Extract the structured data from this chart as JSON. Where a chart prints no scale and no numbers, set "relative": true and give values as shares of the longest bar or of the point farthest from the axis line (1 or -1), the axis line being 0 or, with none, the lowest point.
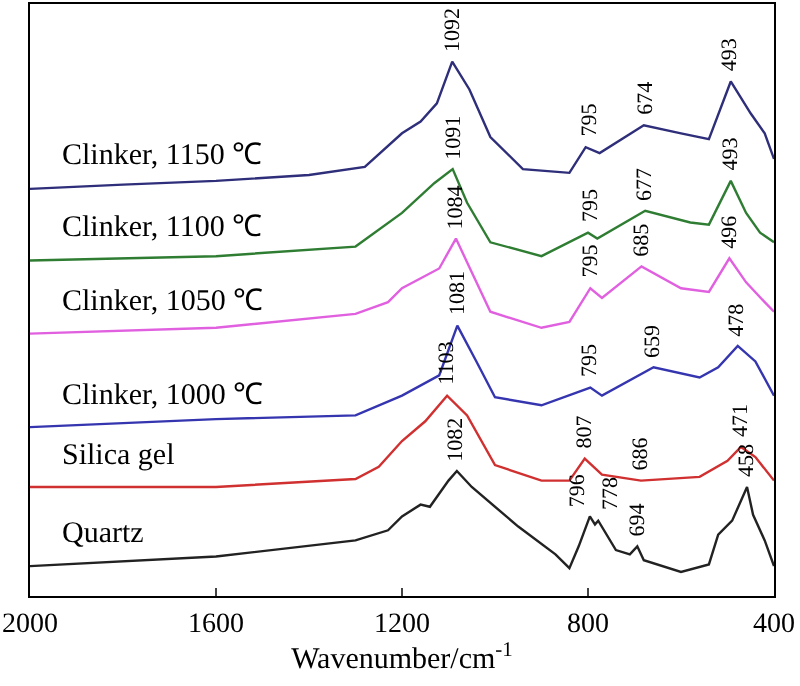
{
  "chart_data": {
    "type": "line",
    "relative": true,
    "xlabel": "Wavenumber/cm$^{-1}$",
    "xlim": [
      2000,
      400
    ],
    "xticks": [
      2000,
      1600,
      1200,
      800,
      400
    ],
    "legend": false,
    "marker": "none",
    "line_style": "solid",
    "series": [
      {
        "name": "Clinker, 1150 ℃",
        "color": "#2e2e7a",
        "x": [
          2000,
          1800,
          1600,
          1400,
          1280,
          1200,
          1160,
          1125,
          1092,
          1055,
          1010,
          940,
          840,
          805,
          775,
          680,
          600,
          540,
          493,
          450,
          420,
          400
        ],
        "values": [
          0.762,
          0.77,
          0.777,
          0.788,
          0.803,
          0.866,
          0.888,
          0.922,
          1.0,
          0.948,
          0.859,
          0.799,
          0.792,
          0.84,
          0.829,
          0.881,
          0.866,
          0.855,
          0.963,
          0.903,
          0.866,
          0.818
        ]
      },
      {
        "name": "Clinker, 1100 ℃",
        "color": "#2e7d32",
        "x": [
          2000,
          1600,
          1300,
          1200,
          1130,
          1091,
          1060,
          1010,
          900,
          800,
          780,
          677,
          580,
          540,
          493,
          460,
          430,
          400
        ],
        "values": [
          0.628,
          0.636,
          0.654,
          0.717,
          0.773,
          0.799,
          0.736,
          0.662,
          0.636,
          0.68,
          0.669,
          0.721,
          0.699,
          0.695,
          0.777,
          0.717,
          0.68,
          0.662
        ]
      },
      {
        "name": "Clinker, 1050 ℃",
        "color": "#e060e0",
        "x": [
          2000,
          1600,
          1300,
          1230,
          1200,
          1120,
          1084,
          1050,
          1010,
          900,
          840,
          795,
          770,
          685,
          600,
          540,
          496,
          460,
          420,
          400
        ],
        "values": [
          0.491,
          0.502,
          0.528,
          0.55,
          0.576,
          0.613,
          0.669,
          0.606,
          0.532,
          0.502,
          0.513,
          0.576,
          0.558,
          0.617,
          0.576,
          0.569,
          0.632,
          0.587,
          0.55,
          0.532
        ]
      },
      {
        "name": "Clinker, 1000 ℃",
        "color": "#3535b0",
        "x": [
          2000,
          1600,
          1300,
          1200,
          1120,
          1081,
          1040,
          1000,
          900,
          795,
          770,
          659,
          560,
          520,
          478,
          440,
          400
        ],
        "values": [
          0.316,
          0.331,
          0.338,
          0.375,
          0.413,
          0.506,
          0.439,
          0.372,
          0.357,
          0.39,
          0.375,
          0.428,
          0.409,
          0.428,
          0.468,
          0.439,
          0.375
        ]
      },
      {
        "name": "Silica gel",
        "color": "#d03030",
        "x": [
          2000,
          1600,
          1300,
          1250,
          1200,
          1150,
          1103,
          1060,
          1000,
          900,
          840,
          807,
          770,
          686,
          560,
          500,
          471,
          440,
          400
        ],
        "values": [
          0.204,
          0.204,
          0.219,
          0.242,
          0.29,
          0.327,
          0.375,
          0.338,
          0.245,
          0.216,
          0.216,
          0.257,
          0.227,
          0.216,
          0.223,
          0.253,
          0.279,
          0.26,
          0.216
        ]
      },
      {
        "name": "Quartz",
        "color": "#222222",
        "x": [
          2000,
          1600,
          1300,
          1230,
          1200,
          1160,
          1140,
          1100,
          1082,
          1050,
          950,
          870,
          840,
          820,
          796,
          785,
          778,
          740,
          710,
          694,
          680,
          600,
          540,
          520,
          490,
          458,
          445,
          420,
          400
        ],
        "values": [
          0.056,
          0.074,
          0.104,
          0.123,
          0.149,
          0.171,
          0.167,
          0.216,
          0.234,
          0.204,
          0.13,
          0.078,
          0.052,
          0.093,
          0.149,
          0.134,
          0.141,
          0.086,
          0.078,
          0.093,
          0.067,
          0.045,
          0.059,
          0.115,
          0.141,
          0.204,
          0.152,
          0.104,
          0.056
        ]
      }
    ],
    "annotations": [
      {
        "text": "1092",
        "x": 1092,
        "y": 1.0
      },
      {
        "text": "795",
        "x": 795,
        "y": 0.84
      },
      {
        "text": "674",
        "x": 674,
        "y": 0.881
      },
      {
        "text": "493",
        "x": 493,
        "y": 0.963
      },
      {
        "text": "1091",
        "x": 1091,
        "y": 0.799
      },
      {
        "text": "795",
        "x": 795,
        "y": 0.68
      },
      {
        "text": "677",
        "x": 677,
        "y": 0.721
      },
      {
        "text": "493",
        "x": 493,
        "y": 0.777
      },
      {
        "text": "1084",
        "x": 1084,
        "y": 0.669
      },
      {
        "text": "795",
        "x": 795,
        "y": 0.576
      },
      {
        "text": "685",
        "x": 685,
        "y": 0.617
      },
      {
        "text": "496",
        "x": 496,
        "y": 0.632
      },
      {
        "text": "1081",
        "x": 1081,
        "y": 0.506
      },
      {
        "text": "795",
        "x": 795,
        "y": 0.39
      },
      {
        "text": "659",
        "x": 659,
        "y": 0.428
      },
      {
        "text": "478",
        "x": 478,
        "y": 0.468
      },
      {
        "text": "1103",
        "x": 1103,
        "y": 0.375
      },
      {
        "text": "807",
        "x": 807,
        "y": 0.257
      },
      {
        "text": "686",
        "x": 686,
        "y": 0.216
      },
      {
        "text": "471",
        "x": 471,
        "y": 0.279
      },
      {
        "text": "1082",
        "x": 1082,
        "y": 0.234
      },
      {
        "text": "796",
        "x": 796,
        "y": 0.149
      },
      {
        "text": "778",
        "x": 778,
        "y": 0.141
      },
      {
        "text": "694",
        "x": 694,
        "y": 0.093
      },
      {
        "text": "458",
        "x": 458,
        "y": 0.204
      }
    ]
  }
}
